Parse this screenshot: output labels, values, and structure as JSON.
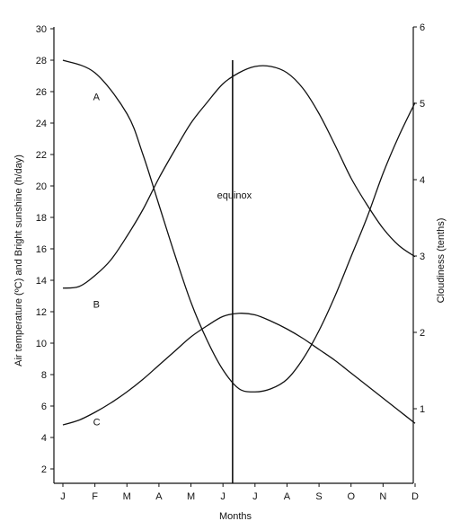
{
  "chart_data": {
    "type": "line",
    "xlabel": "Months",
    "ylabel_left": "Air temperature (ºC) and Bright sunshine (h/day)",
    "ylabel_right": "Cloudiness (tenths)",
    "categories": [
      "J",
      "F",
      "M",
      "A",
      "M",
      "J",
      "J",
      "A",
      "S",
      "O",
      "N",
      "D"
    ],
    "ylim_left": [
      1,
      30
    ],
    "yticks_left": [
      2,
      4,
      6,
      8,
      10,
      12,
      14,
      16,
      18,
      20,
      22,
      24,
      26,
      28,
      30
    ],
    "ylim_right": [
      0,
      6
    ],
    "yticks_right": [
      1,
      2,
      3,
      4,
      5,
      6
    ],
    "grid": false,
    "series": [
      {
        "name": "A",
        "axis": "left",
        "x": [
          0,
          1,
          2,
          2.5,
          3,
          3.5,
          4,
          4.5,
          5,
          5.5,
          6,
          6.5,
          7,
          7.5,
          8,
          8.5,
          9,
          9.5,
          10,
          10.5,
          11
        ],
        "values": [
          28,
          27.2,
          24.6,
          22.0,
          18.8,
          15.6,
          12.6,
          10.2,
          8.3,
          7.1,
          6.9,
          7.1,
          7.7,
          9.0,
          10.8,
          13.0,
          15.5,
          18.0,
          20.8,
          23.2,
          25.3
        ]
      },
      {
        "name": "B",
        "axis": "left",
        "x": [
          0,
          0.5,
          1,
          1.5,
          2,
          2.5,
          3,
          3.5,
          4,
          4.5,
          5,
          5.5,
          6,
          6.5,
          7,
          7.5,
          8,
          8.5,
          9,
          9.5,
          10,
          10.5,
          11
        ],
        "values": [
          13.5,
          13.6,
          14.3,
          15.3,
          16.8,
          18.5,
          20.5,
          22.3,
          24.0,
          25.3,
          26.5,
          27.2,
          27.6,
          27.6,
          27.2,
          26.2,
          24.6,
          22.6,
          20.5,
          18.8,
          17.3,
          16.2,
          15.5
        ]
      },
      {
        "name": "C",
        "axis": "left",
        "x": [
          0,
          0.5,
          1,
          1.5,
          2,
          2.5,
          3,
          3.5,
          4,
          4.5,
          5,
          5.5,
          6,
          6.5,
          7,
          7.5,
          8,
          8.5,
          9,
          9.5,
          10,
          10.5,
          11
        ],
        "values": [
          4.8,
          5.1,
          5.6,
          6.2,
          6.9,
          7.7,
          8.6,
          9.5,
          10.4,
          11.1,
          11.7,
          11.9,
          11.8,
          11.4,
          10.9,
          10.3,
          9.6,
          8.9,
          8.1,
          7.3,
          6.5,
          5.7,
          4.9
        ]
      }
    ],
    "series_label_positions": [
      {
        "name": "A",
        "x": 1.0,
        "y": 25.7
      },
      {
        "name": "B",
        "x": 1.0,
        "y": 12.5
      },
      {
        "name": "C",
        "x": 1.0,
        "y": 5.0
      }
    ],
    "annotations": [
      {
        "type": "vline",
        "x": 5.3,
        "y_from": 1,
        "y_to": 28,
        "label": "equinox",
        "label_y": 19.2
      }
    ]
  }
}
